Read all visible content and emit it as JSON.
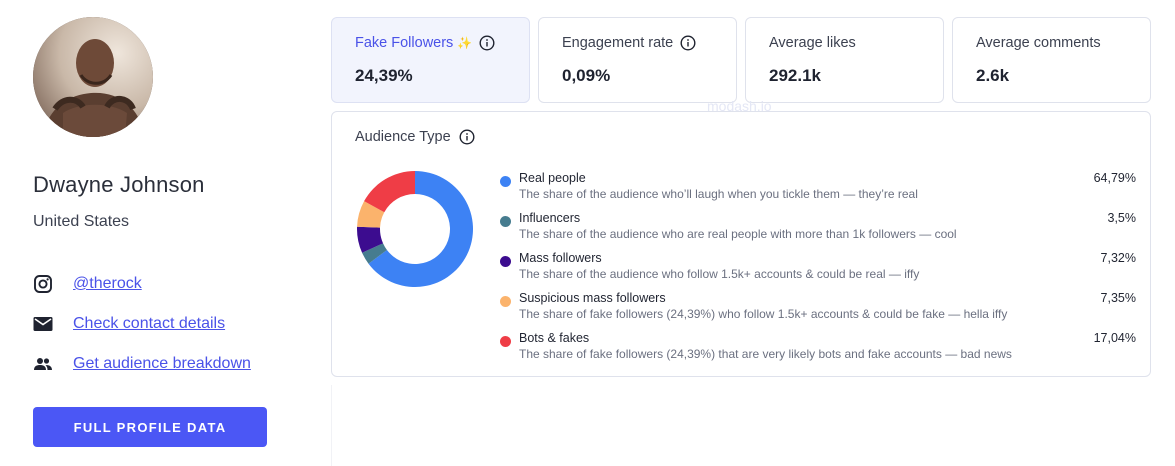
{
  "profile": {
    "name": "Dwayne Johnson",
    "country": "United States",
    "instagram_handle": "@therock",
    "contact_link": "Check contact details",
    "audience_link": "Get audience breakdown",
    "full_profile_button": "FULL PROFILE DATA"
  },
  "stats": [
    {
      "label": "Fake Followers",
      "value": "24,39%",
      "active": true,
      "sparkle": true,
      "info": true
    },
    {
      "label": "Engagement rate",
      "value": "0,09%",
      "active": false,
      "sparkle": false,
      "info": true
    },
    {
      "label": "Average likes",
      "value": "292.1k",
      "active": false,
      "sparkle": false,
      "info": false
    },
    {
      "label": "Average comments",
      "value": "2.6k",
      "active": false,
      "sparkle": false,
      "info": false
    }
  ],
  "watermark": "modash.io",
  "audience_type": {
    "title": "Audience Type",
    "items": [
      {
        "name": "Real people",
        "description": "The share of the audience who’ll laugh when you tickle them — they’re real",
        "percent": "64,79%",
        "value": 64.79,
        "color": "#3d82f4"
      },
      {
        "name": "Influencers",
        "description": "The share of the audience who are real people with more than 1k followers — cool",
        "percent": "3,5%",
        "value": 3.5,
        "color": "#467c8f"
      },
      {
        "name": "Mass followers",
        "description": "The share of the audience who follow 1.5k+ accounts & could be real — iffy",
        "percent": "7,32%",
        "value": 7.32,
        "color": "#3c0c8f"
      },
      {
        "name": "Suspicious mass followers",
        "description": "The share of fake followers (24,39%) who follow 1.5k+ accounts & could be fake — hella iffy",
        "percent": "7,35%",
        "value": 7.35,
        "color": "#fbb36c"
      },
      {
        "name": "Bots & fakes",
        "description": "The share of fake followers (24,39%) that are very likely bots and fake accounts — bad news",
        "percent": "17,04%",
        "value": 17.04,
        "color": "#ef3d46"
      }
    ]
  },
  "icons": {
    "instagram": "instagram-icon",
    "email": "mail-icon",
    "audience": "people-icon",
    "info": "info-icon",
    "sparkle": "sparkle-icon"
  },
  "colors": {
    "accent": "#4b57f5",
    "link": "#4a52e8",
    "active_card_bg": "#f2f4fd"
  }
}
